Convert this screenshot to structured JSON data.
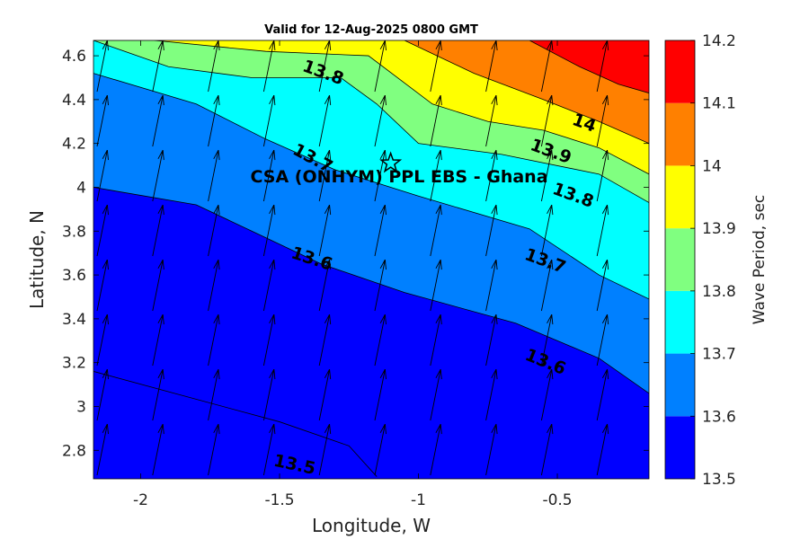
{
  "chart_data": {
    "type": "contour",
    "title": "Valid for 12-Aug-2025 0800 GMT",
    "xlabel": "Longitude, W",
    "ylabel": "Latitude, N",
    "xlim": [
      -2.17,
      -0.17
    ],
    "ylim": [
      2.67,
      4.67
    ],
    "x_ticks": [
      -2,
      -1.5,
      -1,
      -0.5
    ],
    "x_tick_labels": [
      "-2",
      "-1.5",
      "-1",
      "-0.5"
    ],
    "y_ticks": [
      2.8,
      3.0,
      3.2,
      3.4,
      3.6,
      3.8,
      4.0,
      4.2,
      4.4,
      4.6
    ],
    "y_tick_labels": [
      "2.8",
      "3",
      "3.2",
      "3.4",
      "3.6",
      "3.8",
      "4",
      "4.2",
      "4.4",
      "4.6"
    ],
    "colorbar": {
      "label": "Wave Period, sec",
      "levels": [
        13.5,
        13.6,
        13.7,
        13.8,
        13.9,
        14.0,
        14.1,
        14.2
      ],
      "level_labels": [
        "13.5",
        "13.6",
        "13.7",
        "13.8",
        "13.9",
        "14",
        "14.1",
        "14.2"
      ],
      "colors": [
        "#0000ff",
        "#0080ff",
        "#00ffff",
        "#80ff80",
        "#ffff00",
        "#ff8000",
        "#ff0000"
      ]
    },
    "contours": [
      {
        "level": 13.5,
        "label": "13.5",
        "points": [
          [
            -2.17,
            3.16
          ],
          [
            -1.85,
            3.05
          ],
          [
            -1.5,
            2.93
          ],
          [
            -1.25,
            2.82
          ],
          [
            -1.15,
            2.68
          ]
        ]
      },
      {
        "level": 13.6,
        "label": "13.6",
        "points": [
          [
            -2.17,
            4.0
          ],
          [
            -1.8,
            3.92
          ],
          [
            -1.6,
            3.8
          ],
          [
            -1.35,
            3.65
          ],
          [
            -1.05,
            3.52
          ],
          [
            -0.65,
            3.38
          ],
          [
            -0.35,
            3.22
          ],
          [
            -0.17,
            3.06
          ]
        ]
      },
      {
        "level": 13.7,
        "label": "13.7",
        "points": [
          [
            -2.17,
            4.52
          ],
          [
            -1.8,
            4.38
          ],
          [
            -1.55,
            4.22
          ],
          [
            -1.3,
            4.08
          ],
          [
            -1.0,
            3.96
          ],
          [
            -0.6,
            3.81
          ],
          [
            -0.35,
            3.6
          ],
          [
            -0.17,
            3.49
          ]
        ]
      },
      {
        "level": 13.8,
        "label": "13.8",
        "points": [
          [
            -2.17,
            4.67
          ],
          [
            -1.9,
            4.55
          ],
          [
            -1.6,
            4.5
          ],
          [
            -1.28,
            4.5
          ],
          [
            -1.15,
            4.38
          ],
          [
            -1.0,
            4.2
          ],
          [
            -0.7,
            4.15
          ],
          [
            -0.35,
            4.06
          ],
          [
            -0.17,
            3.93
          ]
        ]
      },
      {
        "level": 13.9,
        "label": "13.9",
        "points": [
          [
            -1.95,
            4.67
          ],
          [
            -1.55,
            4.62
          ],
          [
            -1.18,
            4.6
          ],
          [
            -0.95,
            4.38
          ],
          [
            -0.75,
            4.3
          ],
          [
            -0.55,
            4.26
          ],
          [
            -0.35,
            4.18
          ],
          [
            -0.17,
            4.06
          ]
        ]
      },
      {
        "level": 14.0,
        "label": "14",
        "points": [
          [
            -1.05,
            4.67
          ],
          [
            -0.8,
            4.52
          ],
          [
            -0.55,
            4.4
          ],
          [
            -0.35,
            4.3
          ],
          [
            -0.17,
            4.2
          ]
        ]
      },
      {
        "level": 14.1,
        "label": "14.1",
        "points": [
          [
            -0.6,
            4.67
          ],
          [
            -0.42,
            4.55
          ],
          [
            -0.28,
            4.47
          ],
          [
            -0.17,
            4.43
          ]
        ]
      }
    ],
    "contour_labels": [
      {
        "text": "13.5",
        "x": -1.45,
        "y": 2.71,
        "angle": 12
      },
      {
        "text": "13.6",
        "x": -1.39,
        "y": 3.65,
        "angle": 18
      },
      {
        "text": "13.6",
        "x": -0.55,
        "y": 3.18,
        "angle": 22
      },
      {
        "text": "13.7",
        "x": -0.55,
        "y": 3.64,
        "angle": 20
      },
      {
        "text": "13.7",
        "x": -1.39,
        "y": 4.11,
        "angle": 28
      },
      {
        "text": "13.8",
        "x": -1.35,
        "y": 4.5,
        "angle": 20
      },
      {
        "text": "13.8",
        "x": -0.45,
        "y": 3.94,
        "angle": 20
      },
      {
        "text": "13.9",
        "x": -0.53,
        "y": 4.14,
        "angle": 20
      },
      {
        "text": "14",
        "x": -0.41,
        "y": 4.27,
        "angle": 20
      }
    ],
    "wave_direction": {
      "dx": 0.2,
      "dy": 1.0,
      "rows": 8,
      "cols": 10
    },
    "station": {
      "name": "CSA (ONHYM) PPL EBS  - Ghana",
      "lon": -1.1,
      "lat": 4.11
    }
  }
}
